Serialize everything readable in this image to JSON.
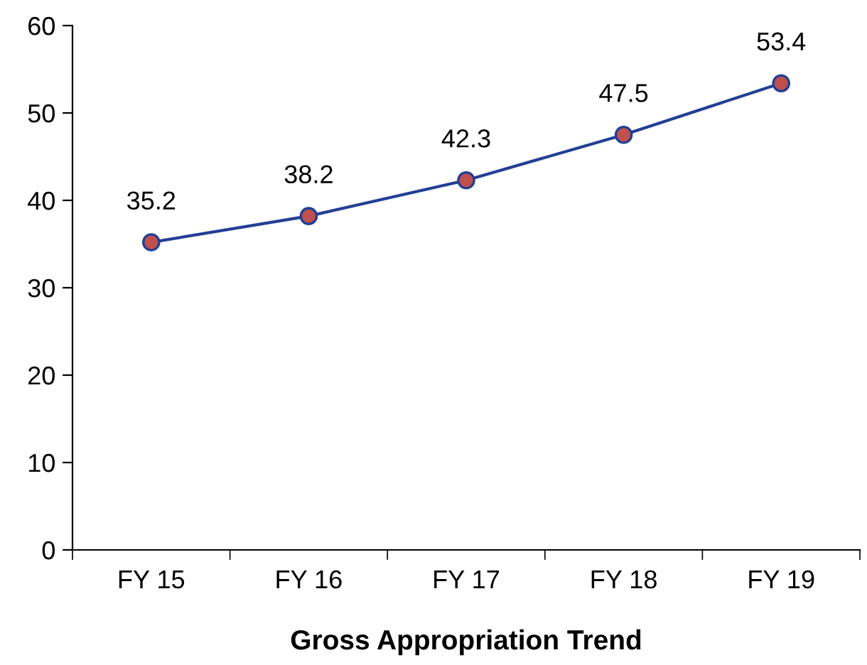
{
  "chart_data": {
    "type": "line",
    "title": "Gross Appropriation Trend",
    "categories": [
      "FY 15",
      "FY 16",
      "FY 17",
      "FY 18",
      "FY 19"
    ],
    "series": [
      {
        "color": "#233f95",
        "values": [
          35.2,
          38.2,
          42.3,
          47.5,
          53.4
        ]
      }
    ],
    "ylim": [
      0,
      60
    ],
    "yticks": [
      0,
      10,
      20,
      30,
      40,
      50,
      60
    ],
    "data_labels": true,
    "marker": "circle",
    "line_style": "solid",
    "grid": false,
    "legend": false
  }
}
